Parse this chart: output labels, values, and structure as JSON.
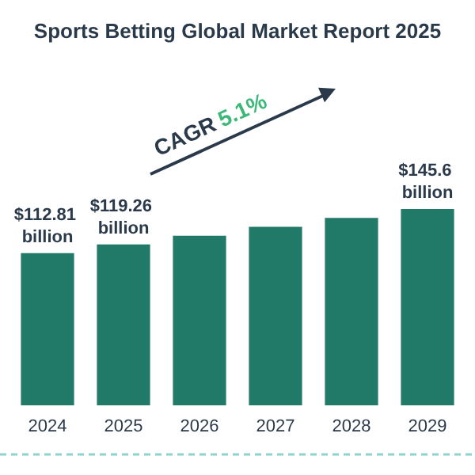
{
  "chart_data": {
    "type": "bar",
    "title": "Sports Betting Global Market Report 2025",
    "categories": [
      "2024",
      "2025",
      "2026",
      "2027",
      "2028",
      "2029"
    ],
    "values": [
      112.81,
      119.26,
      125.8,
      132.4,
      139,
      145.6
    ],
    "value_labels": [
      "$112.81 billion",
      "$119.26 billion",
      null,
      null,
      null,
      "$145.6 billion"
    ],
    "color": "#217a68",
    "data_labels": false,
    "annotations": [
      {
        "text": "CAGR 5.1%"
      }
    ]
  }
}
